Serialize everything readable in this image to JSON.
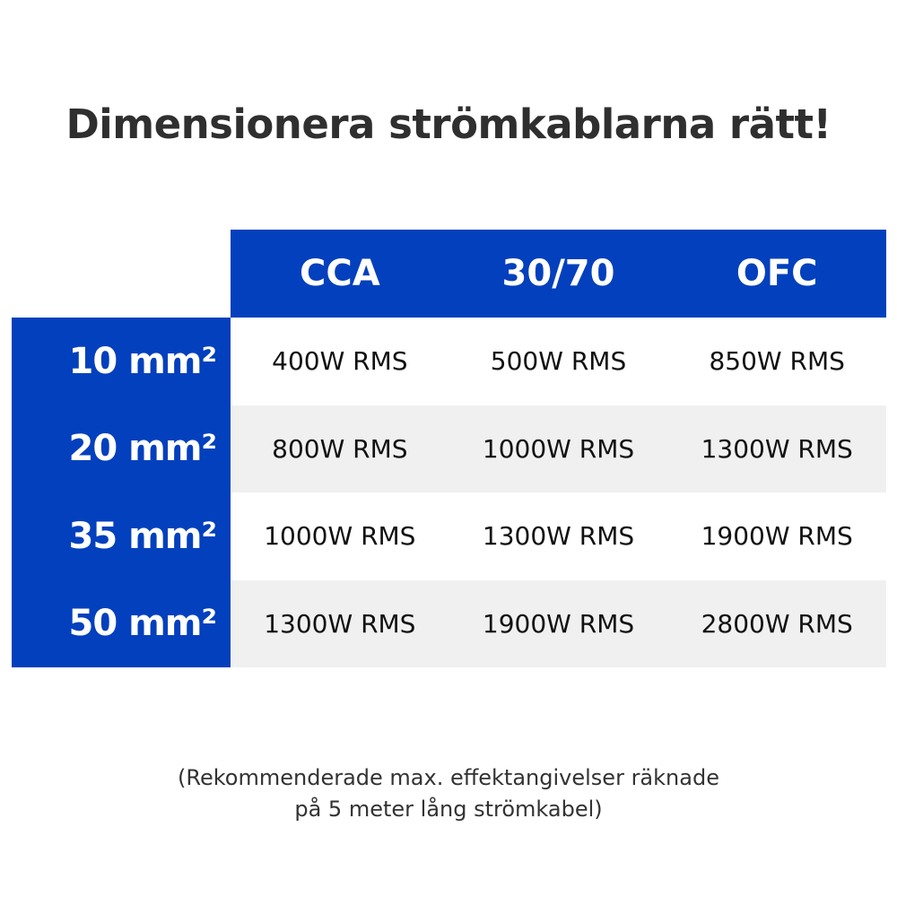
{
  "title": "Dimensionera strömkablarna rätt!",
  "table": {
    "columns": [
      "CCA",
      "30/70",
      "OFC"
    ],
    "rows": [
      {
        "label": "10 mm²",
        "values": [
          "400W RMS",
          "500W RMS",
          "850W RMS"
        ]
      },
      {
        "label": "20 mm²",
        "values": [
          "800W RMS",
          "1000W RMS",
          "1300W RMS"
        ]
      },
      {
        "label": "35 mm²",
        "values": [
          "1000W RMS",
          "1300W RMS",
          "1900W RMS"
        ]
      },
      {
        "label": "50 mm²",
        "values": [
          "1300W RMS",
          "1900W RMS",
          "2800W RMS"
        ]
      }
    ]
  },
  "note": {
    "line1": "(Rekommenderade max. effektangivelser räknade",
    "line2": "på 5 meter lång strömkabel)"
  },
  "colors": {
    "accent": "#0340bd",
    "alt_row": "#f0f0f0"
  }
}
